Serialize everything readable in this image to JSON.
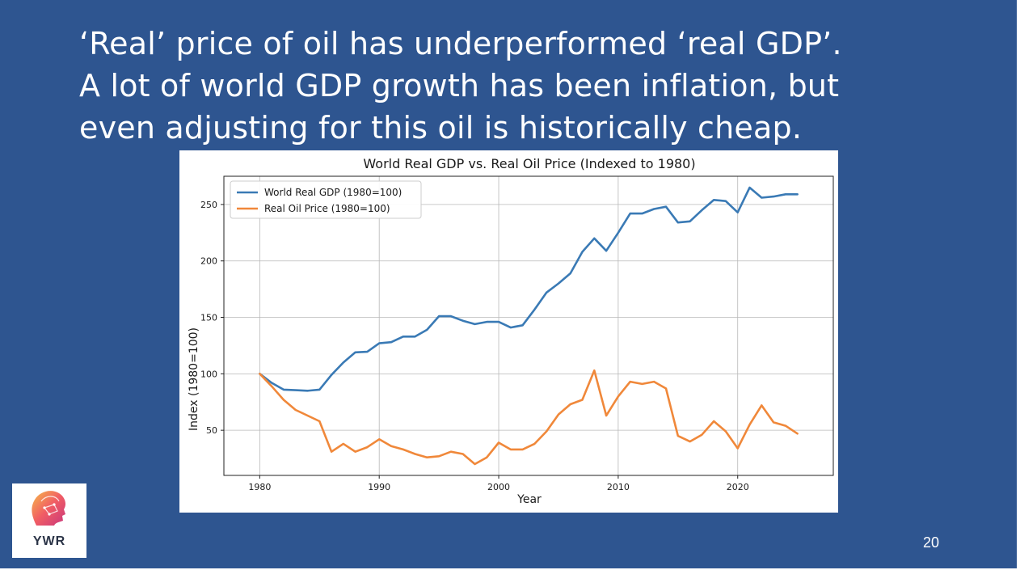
{
  "slide": {
    "headline_lines": [
      "‘Real’ price of oil has underperformed ‘real GDP’.",
      "A lot of world GDP growth has been inflation, but",
      "even adjusting for this oil is historically cheap."
    ],
    "page_number": "20",
    "logo_text": "YWR",
    "background_color": "#2e5590"
  },
  "chart_data": {
    "type": "line",
    "title": "World Real GDP vs. Real Oil Price (Indexed to 1980)",
    "xlabel": "Year",
    "ylabel": "Index (1980=100)",
    "xlim": [
      1977,
      2028
    ],
    "ylim": [
      10,
      275
    ],
    "xticks": [
      1980,
      1990,
      2000,
      2010,
      2020
    ],
    "yticks": [
      50,
      100,
      150,
      200,
      250
    ],
    "grid": true,
    "legend_position": "top-left",
    "x": [
      1980,
      1981,
      1982,
      1983,
      1984,
      1985,
      1986,
      1987,
      1988,
      1989,
      1990,
      1991,
      1992,
      1993,
      1994,
      1995,
      1996,
      1997,
      1998,
      1999,
      2000,
      2001,
      2002,
      2003,
      2004,
      2005,
      2006,
      2007,
      2008,
      2009,
      2010,
      2011,
      2012,
      2013,
      2014,
      2015,
      2016,
      2017,
      2018,
      2019,
      2020,
      2021,
      2022,
      2023,
      2024,
      2025
    ],
    "series": [
      {
        "name": "World Real GDP (1980=100)",
        "color": "#3a7ab5",
        "values": [
          100,
          92,
          86,
          85.5,
          85,
          86,
          99,
          110,
          119,
          119.5,
          127,
          128,
          133,
          133,
          139,
          151,
          151,
          147,
          144,
          146,
          146,
          141,
          143,
          157,
          172,
          180,
          189,
          208,
          220,
          209,
          225,
          242,
          242,
          246,
          248,
          234,
          235,
          245,
          254,
          253,
          243,
          265,
          256,
          257,
          259,
          259
        ]
      },
      {
        "name": "Real Oil Price (1980=100)",
        "color": "#f0883a",
        "values": [
          100,
          89,
          77,
          68,
          63,
          58,
          31,
          38,
          31,
          35,
          42,
          36,
          33,
          29,
          26,
          27,
          31,
          29,
          20,
          26,
          39,
          33,
          33,
          38,
          49,
          64,
          73,
          77,
          103,
          63,
          80,
          93,
          91,
          93,
          87,
          45,
          40,
          46,
          58,
          49,
          34,
          55,
          72,
          57,
          54,
          47
        ]
      }
    ]
  }
}
